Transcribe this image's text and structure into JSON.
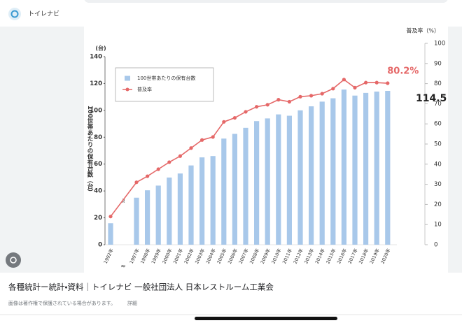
{
  "header": {
    "site": "トイレナビ"
  },
  "chart_data": {
    "type": "bar-line",
    "y_label_top": "(台)",
    "y_label": "100世帯あたりの保有台数（台）",
    "y2_label": "普及率（%）",
    "categories": [
      "1992年",
      "1997年",
      "1998年",
      "1999年",
      "2000年",
      "2001年",
      "2002年",
      "2003年",
      "2004年",
      "2005年",
      "2006年",
      "2007年",
      "2008年",
      "2009年",
      "2010年",
      "2011年",
      "2012年",
      "2013年",
      "2014年",
      "2015年",
      "2016年",
      "2017年",
      "2018年",
      "2019年",
      "2020年"
    ],
    "series": [
      {
        "name": "100世帯あたりの保有台数",
        "type": "bar",
        "color": "#a8c8ea",
        "values": [
          16,
          35,
          40.5,
          44,
          50,
          53,
          59,
          65,
          66,
          79,
          82.5,
          87,
          92,
          94,
          97,
          96,
          100,
          103,
          106.5,
          109,
          115.5,
          111,
          113,
          114,
          114.5
        ]
      },
      {
        "name": "普及率",
        "type": "line",
        "axis": "y2",
        "color": "#e56868",
        "values": [
          14,
          31,
          34,
          37.5,
          41,
          44,
          48,
          52,
          53.5,
          61,
          63,
          66,
          68.5,
          69.5,
          72,
          71,
          73.5,
          74,
          75,
          77.5,
          82,
          78,
          80.5,
          80.5,
          80.2
        ],
        "value_labels": [
          null,
          null,
          null,
          null,
          null,
          null,
          null,
          null,
          null,
          null,
          null,
          null,
          null,
          null,
          null,
          null,
          null,
          null,
          null,
          null,
          null,
          null,
          null,
          null,
          "80.2%"
        ]
      }
    ],
    "ylim": [
      0,
      140
    ],
    "yticks": [
      0,
      20,
      40,
      60,
      80,
      100,
      120,
      140
    ],
    "y2lim": [
      0,
      100
    ],
    "y2ticks": [
      0,
      10,
      20,
      30,
      40,
      50,
      60,
      70,
      80,
      90,
      100
    ],
    "grid": false
  },
  "caption": {
    "title": "各種統計ー統計・資料｜トイレナビ 一般社団法人 日本レストルーム工業会",
    "note": "画像は著作権で保護されている場合があります。",
    "link": "詳細"
  }
}
